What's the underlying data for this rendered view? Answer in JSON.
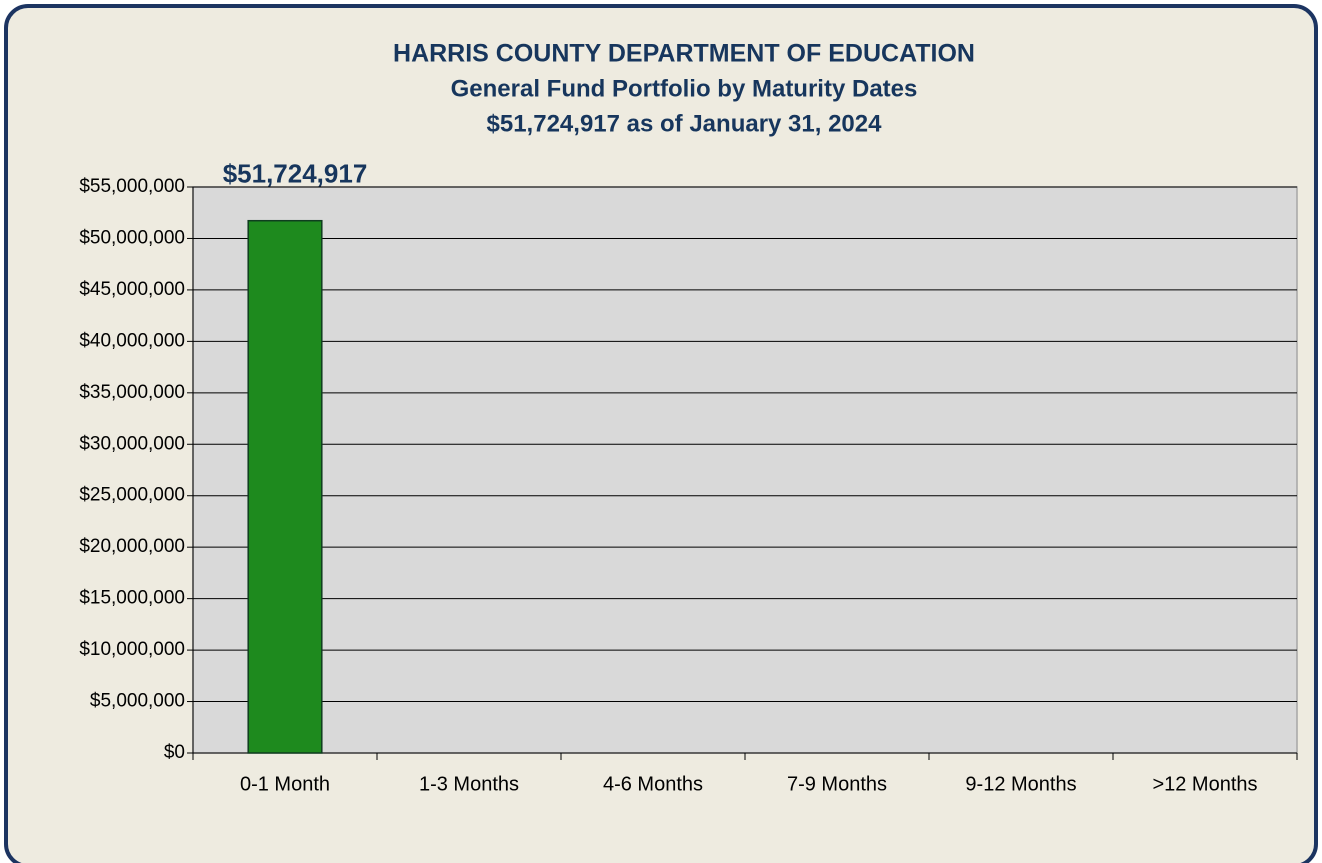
{
  "chart_data": {
    "type": "bar",
    "title": "HARRIS COUNTY DEPARTMENT OF EDUCATION",
    "subtitle": [
      "General Fund Portfolio by Maturity Dates",
      "$51,724,917 as of January 31, 2024"
    ],
    "categories": [
      "0-1 Month",
      "1-3 Months",
      "4-6 Months",
      "7-9 Months",
      "9-12 Months",
      ">12 Months"
    ],
    "values": [
      51724917,
      0,
      0,
      0,
      0,
      0
    ],
    "value_labels": [
      "$51,724,917",
      null,
      null,
      null,
      null,
      null
    ],
    "color": "#1e8a1e",
    "ylim": [
      0,
      55000000
    ],
    "yticks": [
      {
        "value": 0,
        "label": "$0"
      },
      {
        "value": 5000000,
        "label": "$5,000,000"
      },
      {
        "value": 10000000,
        "label": "$10,000,000"
      },
      {
        "value": 15000000,
        "label": "$15,000,000"
      },
      {
        "value": 20000000,
        "label": "$20,000,000"
      },
      {
        "value": 25000000,
        "label": "$25,000,000"
      },
      {
        "value": 30000000,
        "label": "$30,000,000"
      },
      {
        "value": 35000000,
        "label": "$35,000,000"
      },
      {
        "value": 40000000,
        "label": "$40,000,000"
      },
      {
        "value": 45000000,
        "label": "$45,000,000"
      },
      {
        "value": 50000000,
        "label": "$50,000,000"
      },
      {
        "value": 55000000,
        "label": "$55,000,000"
      }
    ],
    "grid": true
  }
}
